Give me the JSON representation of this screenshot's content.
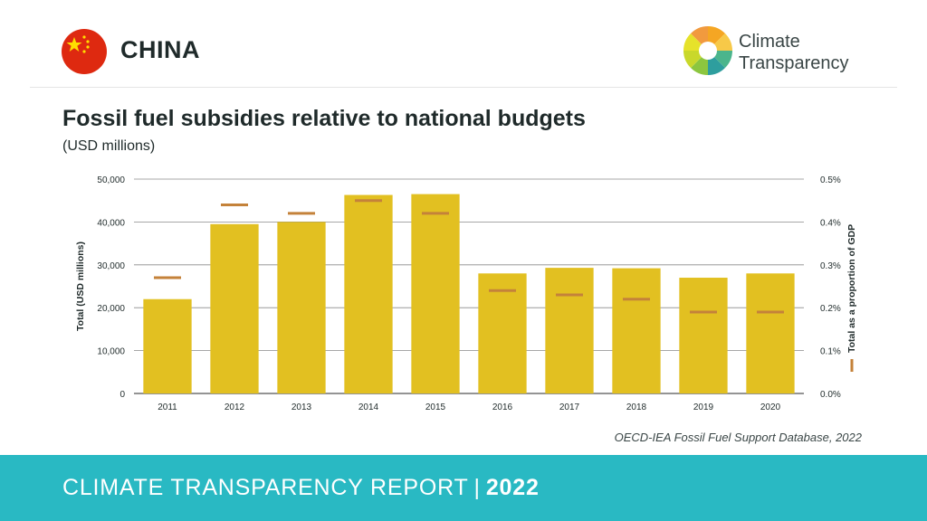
{
  "header": {
    "country": "CHINA",
    "logo_text_line1": "Climate",
    "logo_text_line2": "Transparency"
  },
  "title": "Fossil fuel subsidies relative to national budgets",
  "subtitle": "(USD millions)",
  "source": "OECD-IEA Fossil Fuel Support Database, 2022",
  "footer": {
    "report": "CLIMATE TRANSPARENCY REPORT",
    "separator": "|",
    "year": "2022"
  },
  "colors": {
    "bar": "#e2c021",
    "marker": "#c4823a",
    "gridline": "#8a8a8a",
    "footer_bg": "#29b9c3",
    "flag_red": "#de2910",
    "flag_star": "#ffde00"
  },
  "chart_data": {
    "type": "bar",
    "categories": [
      "2011",
      "2012",
      "2013",
      "2014",
      "2015",
      "2016",
      "2017",
      "2018",
      "2019",
      "2020"
    ],
    "series": [
      {
        "values": [
          22000,
          39500,
          40000,
          46300,
          46500,
          28000,
          29300,
          29200,
          27000,
          28000
        ]
      },
      {
        "values": [
          0.27,
          0.44,
          0.42,
          0.45,
          0.42,
          0.24,
          0.23,
          0.22,
          0.19,
          0.19
        ]
      }
    ],
    "ylabel": "Total (USD millions)",
    "y2label": "Total as a proportion of GDP",
    "ylim": [
      0,
      50000
    ],
    "y2lim": [
      0,
      0.5
    ],
    "yticks": [
      "0",
      "10,000",
      "20,000",
      "30,000",
      "40,000",
      "50,000"
    ],
    "y2ticks": [
      "0.0%",
      "0.1%",
      "0.2%",
      "0.3%",
      "0.4%",
      "0.5%"
    ],
    "grid": true
  }
}
